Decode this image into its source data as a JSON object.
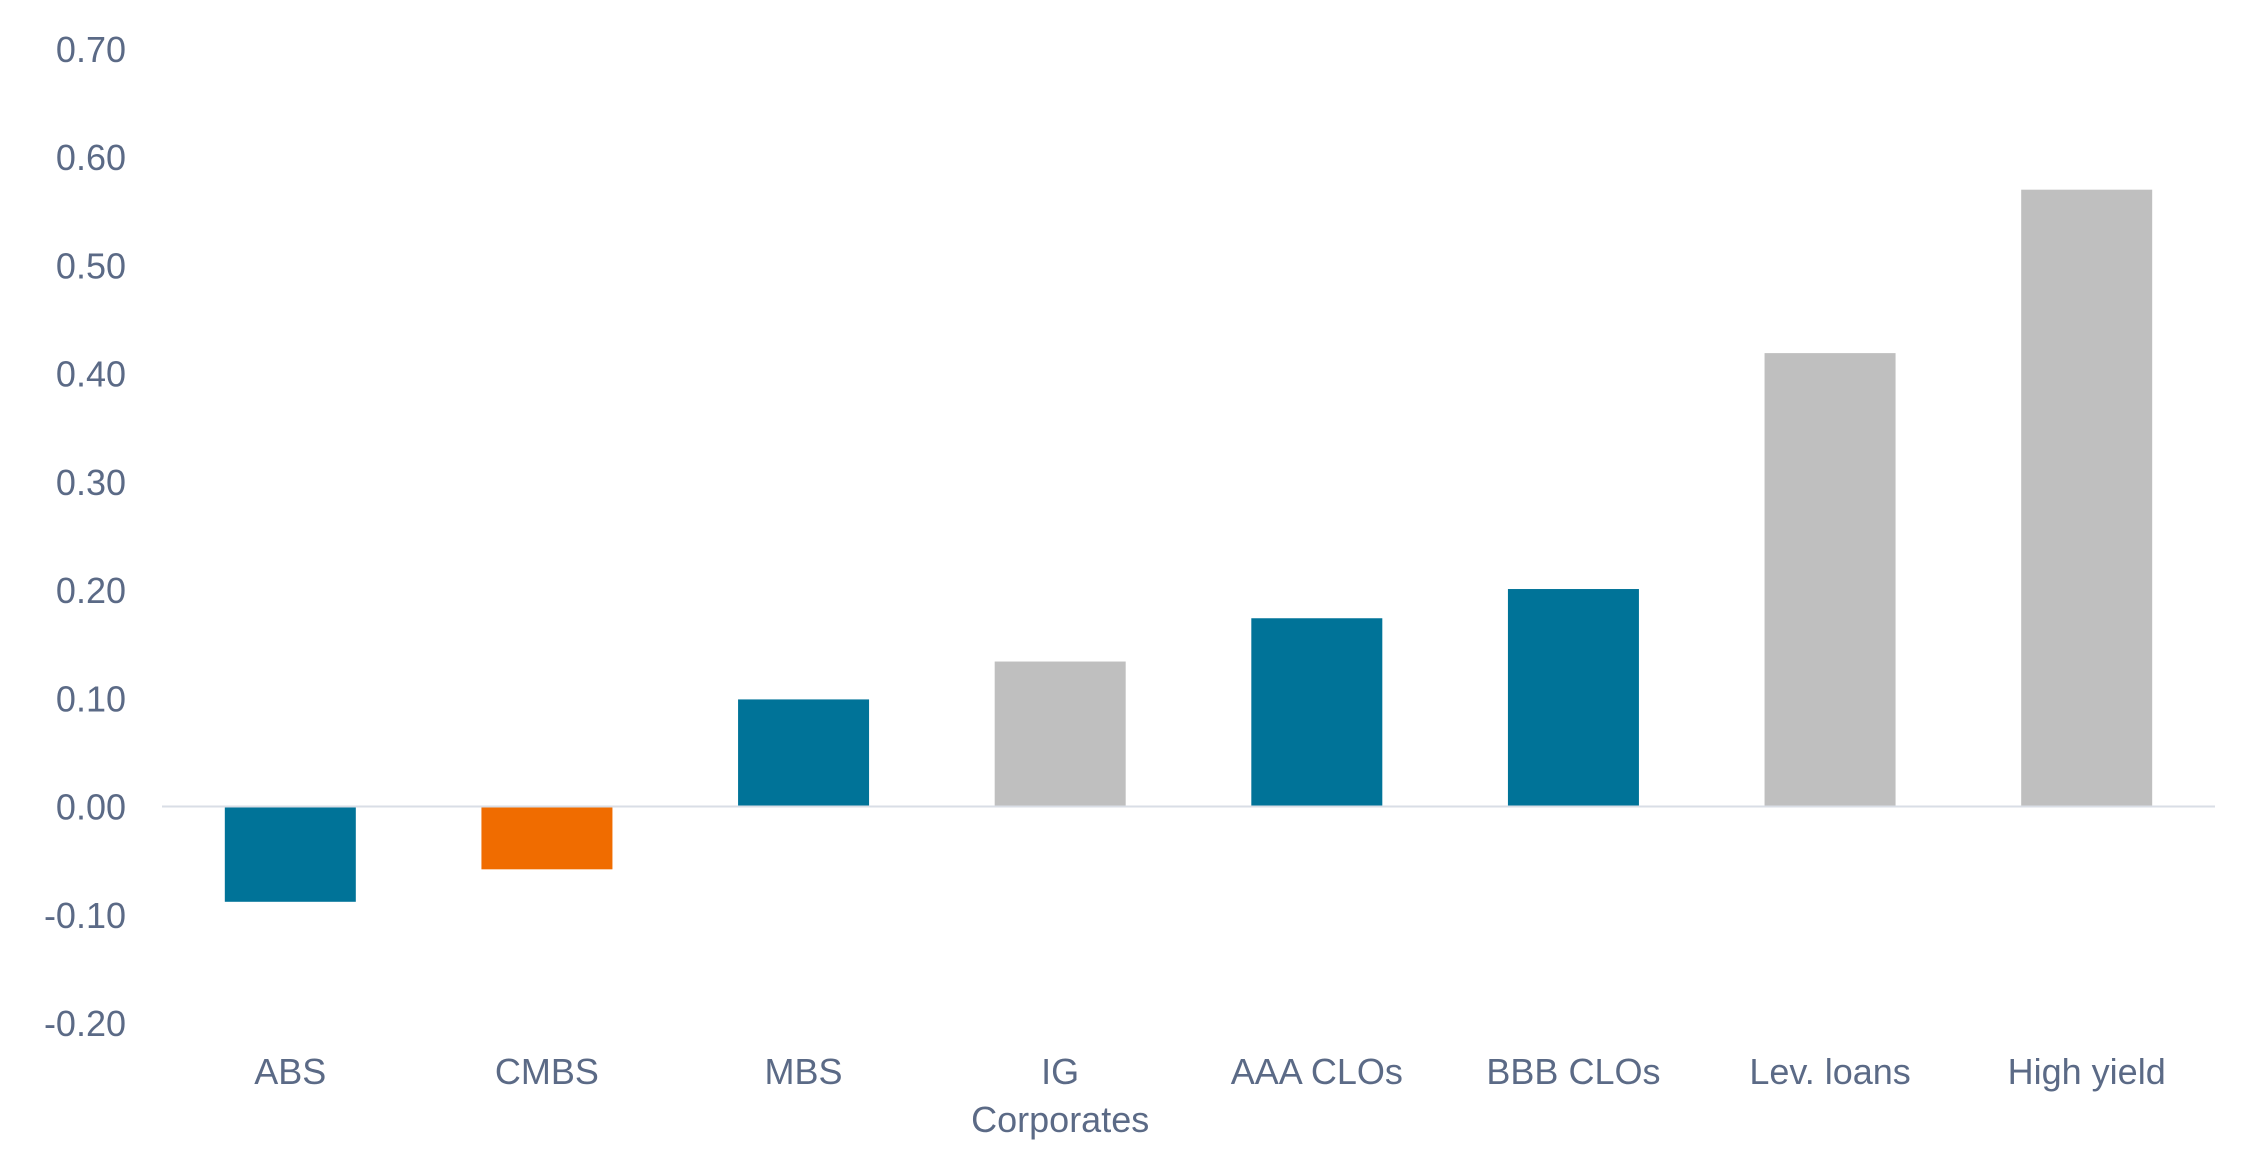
{
  "chart_data": {
    "type": "bar",
    "title": "",
    "xlabel": "",
    "ylabel": "",
    "ylim": [
      -0.2,
      0.7
    ],
    "yticks": [
      "0.70",
      "0.60",
      "0.50",
      "0.40",
      "0.30",
      "0.20",
      "0.10",
      "0.00",
      "-0.10",
      "-0.20"
    ],
    "categories": [
      [
        "ABS"
      ],
      [
        "CMBS"
      ],
      [
        "MBS"
      ],
      [
        "IG",
        "Corporates"
      ],
      [
        "AAA CLOs"
      ],
      [
        "BBB CLOs"
      ],
      [
        "Lev. loans"
      ],
      [
        "High yield"
      ]
    ],
    "values": [
      -0.088,
      -0.058,
      0.099,
      0.134,
      0.174,
      0.201,
      0.419,
      0.57
    ],
    "bar_colors": [
      "#007398",
      "#f06c00",
      "#007398",
      "#bfbfbf",
      "#007398",
      "#007398",
      "#bfbfbf",
      "#bfbfbf"
    ],
    "grid": false,
    "legend": "none",
    "colors": {
      "text": "#5b6a86",
      "axis_line": "#d9dee6"
    }
  }
}
